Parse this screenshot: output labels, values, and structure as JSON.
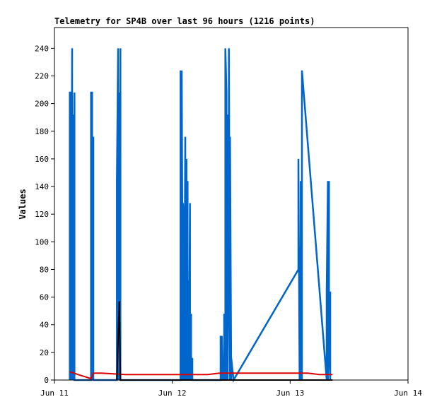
{
  "chart_data": {
    "type": "line",
    "title": "Telemetry for SP4B over last 96 hours (1216 points)",
    "xlabel": "",
    "ylabel": "Values",
    "xlim": [
      "Jun 11",
      "Jun 14"
    ],
    "ylim": [
      0,
      255
    ],
    "x_ticks": [
      "Jun 11",
      "Jun 12",
      "Jun 13",
      "Jun 14"
    ],
    "y_ticks": [
      0,
      20,
      40,
      60,
      80,
      100,
      120,
      140,
      160,
      180,
      200,
      220,
      240
    ],
    "grid": false,
    "legend": "none",
    "series": [
      {
        "color": "#0066cc",
        "x_days": [
          0.13,
          0.13,
          0.14,
          0.14,
          0.15,
          0.15,
          0.16,
          0.16,
          0.17,
          0.17,
          0.31,
          0.31,
          0.32,
          0.32,
          0.33,
          0.33,
          0.53,
          0.53,
          0.54,
          0.54,
          0.55,
          0.55,
          0.56,
          0.56,
          1.07,
          1.07,
          1.08,
          1.08,
          1.09,
          1.09,
          1.1,
          1.1,
          1.11,
          1.11,
          1.12,
          1.12,
          1.13,
          1.13,
          1.14,
          1.14,
          1.15,
          1.15,
          1.16,
          1.16,
          1.17,
          1.17,
          1.18,
          1.18,
          1.41,
          1.41,
          1.42,
          1.42,
          1.43,
          1.43,
          1.44,
          1.44,
          1.45,
          1.45,
          1.46,
          1.46,
          1.47,
          1.47,
          1.48,
          1.48,
          1.49,
          1.49,
          1.5,
          1.5,
          1.52,
          2.07,
          2.07,
          2.08,
          2.08,
          2.09,
          2.09,
          2.1,
          2.1,
          2.31,
          2.31,
          2.32,
          2.32,
          2.33,
          2.33,
          2.34,
          2.34
        ],
        "values": [
          0,
          208,
          208,
          0,
          240,
          0,
          192,
          0,
          208,
          0,
          0,
          208,
          208,
          0,
          176,
          0,
          0,
          144,
          240,
          0,
          208,
          0,
          240,
          0,
          0,
          224,
          0,
          224,
          0,
          128,
          112,
          0,
          176,
          0,
          160,
          0,
          144,
          0,
          72,
          0,
          128,
          0,
          48,
          0,
          16,
          0,
          0,
          0,
          0,
          32,
          0,
          32,
          0,
          16,
          0,
          48,
          0,
          240,
          208,
          0,
          192,
          0,
          128,
          240,
          0,
          176,
          0,
          16,
          0,
          80,
          160,
          0,
          96,
          0,
          144,
          0,
          224,
          0,
          64,
          144,
          0,
          144,
          24,
          0,
          64
        ]
      },
      {
        "color": "#dd0000",
        "x_days": [
          0.13,
          0.2,
          0.31,
          0.33,
          0.4,
          0.6,
          1.0,
          1.3,
          1.4,
          1.5,
          2.0,
          2.15,
          2.25,
          2.36
        ],
        "values": [
          6,
          4,
          1,
          5,
          5,
          4,
          4,
          4,
          5,
          5,
          5,
          5,
          4,
          4
        ]
      },
      {
        "color": "#000000",
        "x_days": [
          0.53,
          0.54,
          0.55,
          0.56,
          1.0,
          2.36
        ],
        "values": [
          0,
          30,
          57,
          0,
          0,
          0
        ]
      }
    ]
  }
}
